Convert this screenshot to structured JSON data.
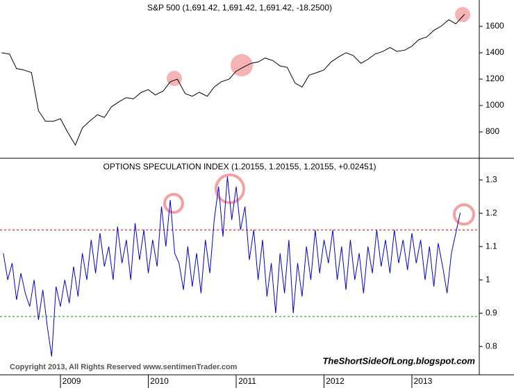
{
  "chart_data": [
    {
      "type": "line",
      "title": "S&P 500 (1,691.42, 1,691.42, 1,691.42, -18.2500)",
      "color": "#000000",
      "x": [
        2008.33,
        2008.42,
        2008.5,
        2008.58,
        2008.67,
        2008.75,
        2008.83,
        2008.92,
        2009.0,
        2009.08,
        2009.17,
        2009.25,
        2009.33,
        2009.42,
        2009.5,
        2009.58,
        2009.67,
        2009.75,
        2009.83,
        2009.92,
        2010.0,
        2010.08,
        2010.17,
        2010.25,
        2010.33,
        2010.42,
        2010.5,
        2010.58,
        2010.67,
        2010.75,
        2010.83,
        2010.92,
        2011.0,
        2011.08,
        2011.17,
        2011.25,
        2011.33,
        2011.42,
        2011.5,
        2011.58,
        2011.67,
        2011.75,
        2011.83,
        2011.92,
        2012.0,
        2012.08,
        2012.17,
        2012.25,
        2012.33,
        2012.42,
        2012.5,
        2012.58,
        2012.67,
        2012.75,
        2012.83,
        2012.92,
        2013.0,
        2013.08,
        2013.17,
        2013.25,
        2013.33,
        2013.42,
        2013.5,
        2013.6
      ],
      "values": [
        1400,
        1390,
        1280,
        1270,
        1250,
        960,
        880,
        880,
        900,
        800,
        700,
        830,
        880,
        930,
        910,
        990,
        1030,
        1060,
        1050,
        1100,
        1120,
        1080,
        1110,
        1180,
        1200,
        1090,
        1070,
        1100,
        1070,
        1140,
        1180,
        1200,
        1260,
        1290,
        1320,
        1330,
        1360,
        1340,
        1300,
        1290,
        1170,
        1140,
        1230,
        1250,
        1270,
        1330,
        1370,
        1400,
        1380,
        1320,
        1350,
        1390,
        1410,
        1440,
        1410,
        1420,
        1450,
        1500,
        1520,
        1570,
        1600,
        1650,
        1620,
        1691.42
      ],
      "xlim": [
        2008.312,
        2013.767
      ],
      "ylim": [
        600,
        1800
      ],
      "yticks": [
        800,
        1000,
        1200,
        1400,
        1600
      ]
    },
    {
      "type": "line",
      "title": "OPTIONS SPECULATION INDEX (1.20155, 1.20155, 1.20155, +0.02451)",
      "color": "#0000cc",
      "x": [
        2008.35,
        2008.4,
        2008.45,
        2008.5,
        2008.55,
        2008.6,
        2008.65,
        2008.7,
        2008.75,
        2008.8,
        2008.85,
        2008.9,
        2008.95,
        2009.0,
        2009.05,
        2009.1,
        2009.15,
        2009.2,
        2009.25,
        2009.3,
        2009.35,
        2009.4,
        2009.45,
        2009.5,
        2009.55,
        2009.6,
        2009.65,
        2009.7,
        2009.75,
        2009.8,
        2009.85,
        2009.9,
        2009.95,
        2010.0,
        2010.05,
        2010.1,
        2010.15,
        2010.2,
        2010.25,
        2010.3,
        2010.35,
        2010.4,
        2010.45,
        2010.5,
        2010.55,
        2010.6,
        2010.65,
        2010.7,
        2010.75,
        2010.8,
        2010.85,
        2010.9,
        2010.95,
        2011.0,
        2011.05,
        2011.1,
        2011.15,
        2011.2,
        2011.25,
        2011.3,
        2011.35,
        2011.4,
        2011.45,
        2011.5,
        2011.55,
        2011.6,
        2011.65,
        2011.7,
        2011.75,
        2011.8,
        2011.85,
        2011.9,
        2011.95,
        2012.0,
        2012.05,
        2012.1,
        2012.15,
        2012.2,
        2012.25,
        2012.3,
        2012.35,
        2012.4,
        2012.45,
        2012.5,
        2012.55,
        2012.6,
        2012.65,
        2012.7,
        2012.75,
        2012.8,
        2012.85,
        2012.9,
        2012.95,
        2013.0,
        2013.05,
        2013.1,
        2013.15,
        2013.2,
        2013.25,
        2013.3,
        2013.35,
        2013.4,
        2013.45,
        2013.5,
        2013.55
      ],
      "values": [
        1.08,
        1.0,
        1.05,
        0.94,
        1.02,
        0.96,
        0.92,
        1.0,
        0.88,
        0.97,
        0.86,
        0.77,
        0.98,
        0.92,
        1.0,
        0.93,
        1.04,
        0.95,
        1.08,
        1.0,
        1.12,
        1.02,
        1.14,
        1.04,
        1.1,
        1.0,
        1.16,
        1.05,
        1.12,
        1.0,
        1.17,
        1.06,
        1.15,
        1.02,
        1.12,
        1.04,
        1.22,
        1.1,
        1.24,
        1.08,
        1.05,
        0.97,
        1.1,
        0.98,
        1.08,
        0.96,
        1.12,
        1.02,
        1.18,
        1.28,
        1.13,
        1.31,
        1.18,
        1.28,
        1.15,
        1.22,
        1.06,
        1.15,
        1.0,
        1.12,
        0.95,
        1.05,
        0.9,
        1.08,
        0.96,
        1.12,
        0.9,
        1.05,
        0.95,
        1.1,
        1.0,
        1.15,
        1.02,
        1.12,
        1.05,
        1.15,
        1.0,
        1.1,
        0.97,
        1.12,
        1.0,
        1.08,
        0.96,
        1.1,
        1.02,
        1.15,
        1.04,
        1.12,
        1.02,
        1.15,
        1.05,
        1.12,
        1.03,
        1.14,
        1.05,
        1.12,
        1.0,
        1.1,
        0.98,
        1.11,
        1.04,
        0.96,
        1.08,
        1.14,
        1.20155
      ],
      "reference_lines": [
        {
          "value": 1.15,
          "color": "#cc0000"
        },
        {
          "value": 0.89,
          "color": "#008800"
        }
      ],
      "xlim": [
        2008.312,
        2013.767
      ],
      "ylim": [
        0.715,
        1.365
      ],
      "yticks": [
        0.8,
        0.9,
        1.0,
        1.1,
        1.2,
        1.3
      ],
      "xticks": [
        2009,
        2010,
        2011,
        2012,
        2013
      ]
    }
  ],
  "footer": {
    "copyright": "Copyright 2013, All Rights Reserved  www.sentimenTrader.com",
    "watermark": "TheShortSideOfLong.blogspot.com"
  }
}
